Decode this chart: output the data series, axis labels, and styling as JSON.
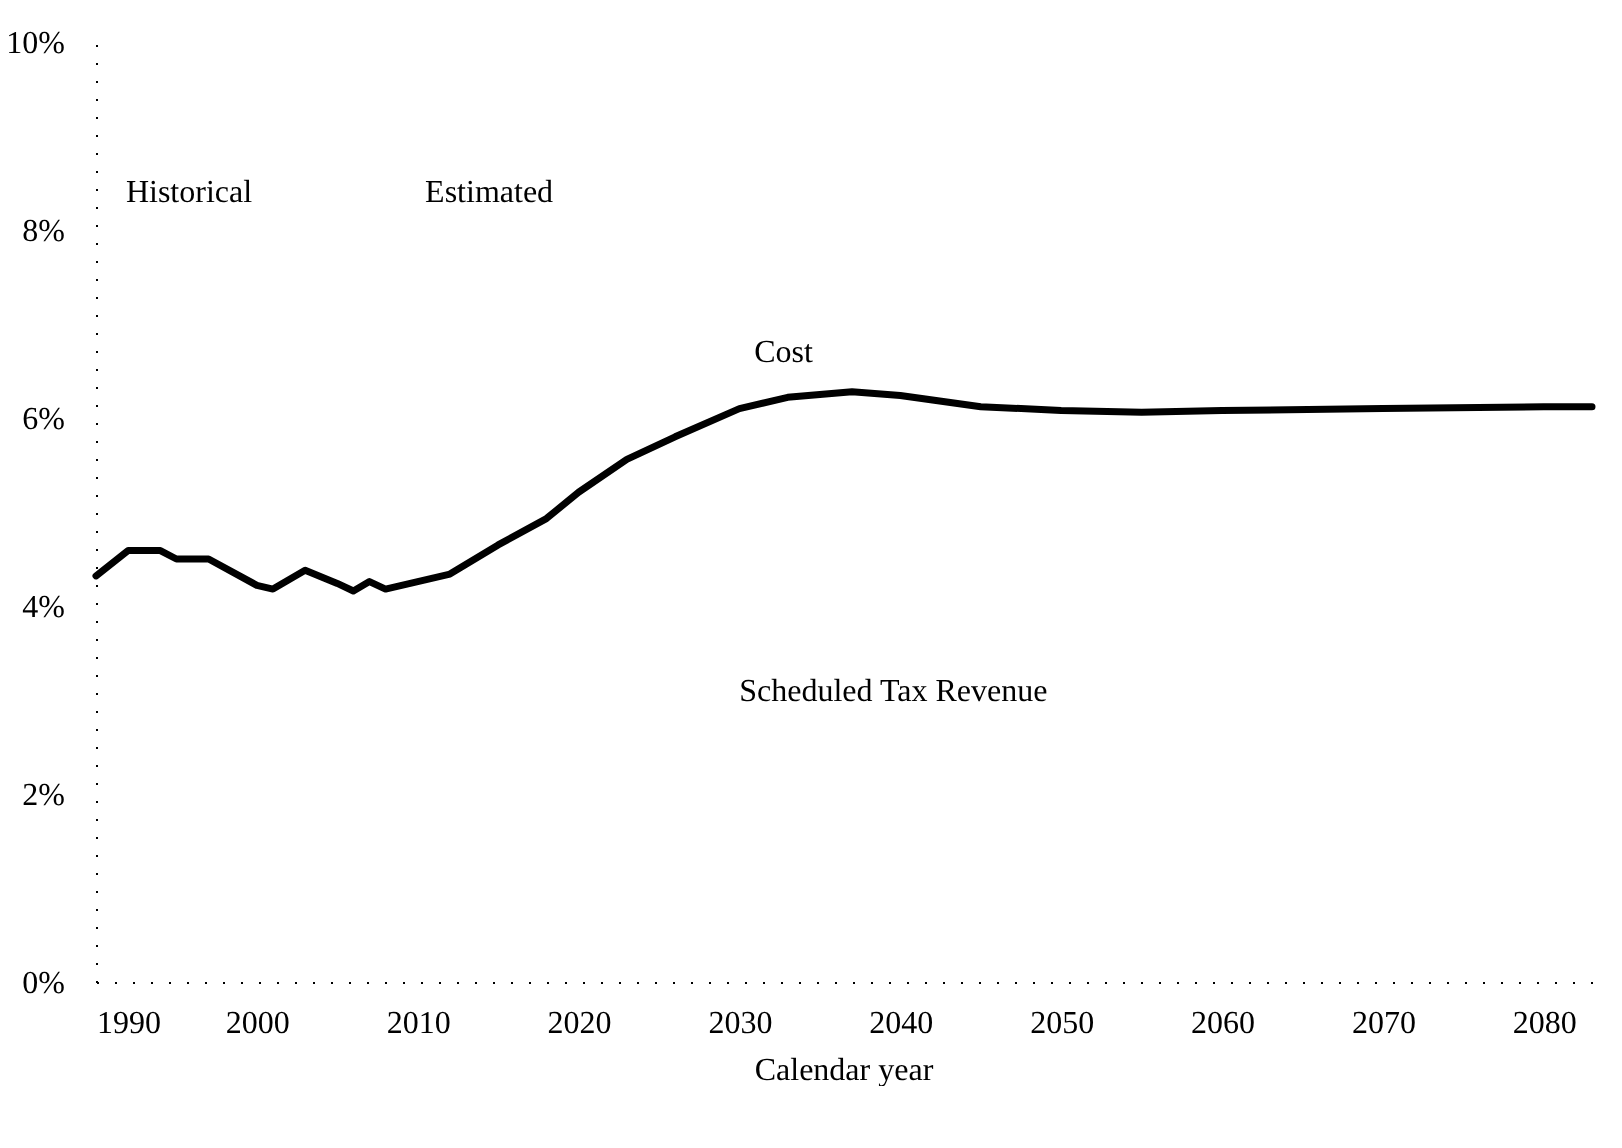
{
  "chart_data": {
    "type": "line",
    "xlabel": "Calendar year",
    "annotations": [
      "Historical",
      "Estimated",
      "Cost",
      "Scheduled Tax Revenue"
    ],
    "x": [
      1990,
      1992,
      1994,
      1995,
      1997,
      2000,
      2001,
      2003,
      2005,
      2006,
      2007,
      2008,
      2010,
      2012,
      2015,
      2018,
      2020,
      2023,
      2026,
      2030,
      2033,
      2037,
      2040,
      2045,
      2050,
      2055,
      2060,
      2070,
      2080,
      2083
    ],
    "series": [
      {
        "color": "#000000",
        "values": [
          4.32,
          4.59,
          4.59,
          4.5,
          4.5,
          4.22,
          4.18,
          4.38,
          4.24,
          4.16,
          4.26,
          4.18,
          4.26,
          4.34,
          4.65,
          4.93,
          5.21,
          5.56,
          5.8,
          6.1,
          6.22,
          6.28,
          6.24,
          6.12,
          6.08,
          6.06,
          6.08,
          6.1,
          6.12,
          6.12
        ]
      }
    ],
    "xlim": [
      1990,
      2083
    ],
    "xticks": [
      1990,
      2000,
      2010,
      2020,
      2030,
      2040,
      2050,
      2060,
      2070,
      2080
    ],
    "ylim": [
      0,
      10
    ],
    "yticks": [
      {
        "value": 0,
        "label": "0%"
      },
      {
        "value": 2,
        "label": "2%"
      },
      {
        "value": 4,
        "label": "4%"
      },
      {
        "value": 6,
        "label": "6%"
      },
      {
        "value": 8,
        "label": "8%"
      },
      {
        "value": 10,
        "label": "10%"
      }
    ],
    "grid": false,
    "marker": "none",
    "line_style": "solid"
  }
}
